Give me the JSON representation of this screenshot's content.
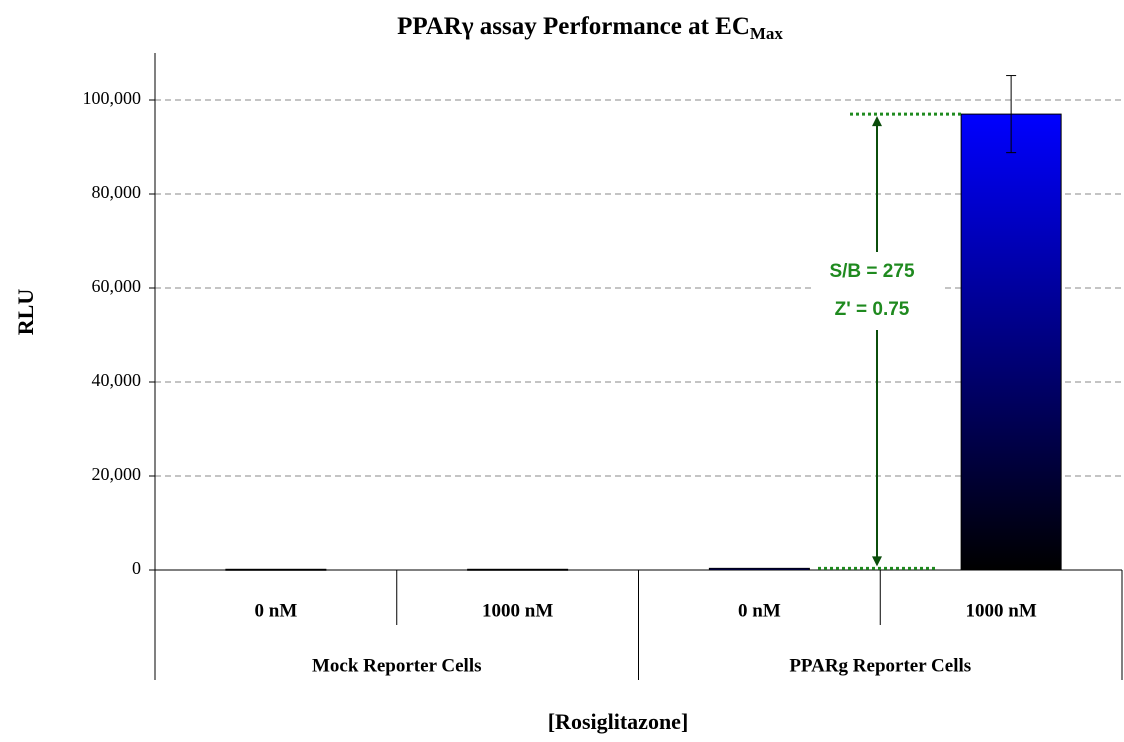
{
  "chart_data": {
    "type": "bar",
    "title": "PPARγ assay Performance at EC",
    "title_subscript": "Max",
    "x_label": "[Rosiglitazone]",
    "y_label": "RLU",
    "categories": [
      "0 nM",
      "1000 nM",
      "0 nM",
      "1000 nM"
    ],
    "groups": [
      {
        "name": "Mock Reporter Cells",
        "size": 2
      },
      {
        "name": "PPARg Reporter Cells",
        "size": 2
      }
    ],
    "values": [
      150,
      150,
      350,
      97000
    ],
    "errors": [
      null,
      null,
      null,
      8200
    ],
    "color": "#0000ff",
    "ylim": [
      0,
      110000
    ],
    "yticks": [
      0,
      {
        "value": 20000,
        "label": "20,000"
      },
      {
        "value": 40000,
        "label": "40,000"
      },
      {
        "value": 60000,
        "label": "60,000"
      },
      {
        "value": 80000,
        "label": "80,000"
      },
      {
        "value": 100000,
        "label": "100,000"
      }
    ],
    "grid": true,
    "annotations": [
      "S/B = 275",
      "Z' = 0.75"
    ],
    "annotation_color": "#1f8a1f"
  }
}
